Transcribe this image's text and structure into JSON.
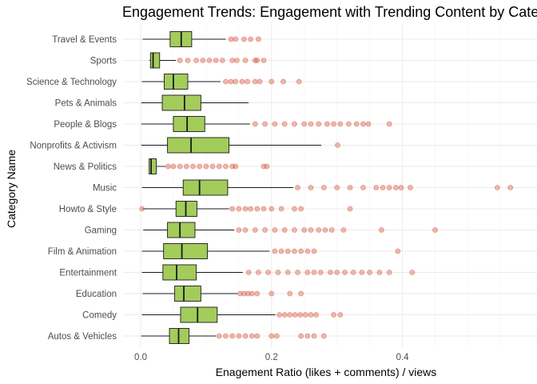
{
  "chart_data": {
    "type": "boxplot",
    "orientation": "horizontal",
    "title": "Engagement Trends: Engagement with Trending Content by Category",
    "xlabel": "Enagement Ratio (likes + comments) / views",
    "ylabel": "Category Name",
    "xlim": [
      -0.02,
      0.58
    ],
    "x_ticks": [
      0.0,
      0.2,
      0.4
    ],
    "x_tick_labels": [
      "0.0",
      "0.2",
      "0.4"
    ],
    "x_minor_ticks": [
      0.1,
      0.3,
      0.5
    ],
    "grid": true,
    "legend": "none",
    "box_color": "#a3cc5b",
    "outlier_color": "#d6543c",
    "categories": [
      {
        "name": "Travel & Events",
        "whisker_low": 0.003,
        "q1": 0.045,
        "median": 0.062,
        "q3": 0.078,
        "whisker_high": 0.13,
        "outliers": [
          0.138,
          0.145,
          0.158,
          0.168,
          0.18
        ]
      },
      {
        "name": "Sports",
        "whisker_low": 0.013,
        "q1": 0.015,
        "median": 0.019,
        "q3": 0.029,
        "whisker_high": 0.054,
        "outliers": [
          0.06,
          0.072,
          0.085,
          0.095,
          0.105,
          0.115,
          0.125,
          0.14,
          0.147,
          0.16,
          0.175,
          0.178,
          0.188
        ]
      },
      {
        "name": "Science & Technology",
        "whisker_low": 0.002,
        "q1": 0.036,
        "median": 0.05,
        "q3": 0.072,
        "whisker_high": 0.122,
        "outliers": [
          0.13,
          0.138,
          0.145,
          0.155,
          0.163,
          0.175,
          0.182,
          0.2,
          0.218,
          0.242
        ]
      },
      {
        "name": "Pets & Animals",
        "whisker_low": 0.001,
        "q1": 0.033,
        "median": 0.067,
        "q3": 0.092,
        "whisker_high": 0.165,
        "outliers": []
      },
      {
        "name": "People & Blogs",
        "whisker_low": 0.001,
        "q1": 0.05,
        "median": 0.071,
        "q3": 0.098,
        "whisker_high": 0.167,
        "outliers": [
          0.175,
          0.19,
          0.205,
          0.22,
          0.235,
          0.25,
          0.26,
          0.272,
          0.285,
          0.295,
          0.305,
          0.318,
          0.33,
          0.34,
          0.348,
          0.38
        ]
      },
      {
        "name": "Nonprofits & Activism",
        "whisker_low": 0.001,
        "q1": 0.041,
        "median": 0.077,
        "q3": 0.135,
        "whisker_high": 0.276,
        "outliers": [
          0.301
        ]
      },
      {
        "name": "News & Politics",
        "whisker_low": 0.013,
        "q1": 0.013,
        "median": 0.016,
        "q3": 0.024,
        "whisker_high": 0.038,
        "outliers": [
          0.042,
          0.05,
          0.06,
          0.07,
          0.08,
          0.09,
          0.1,
          0.11,
          0.12,
          0.13,
          0.14,
          0.145,
          0.188,
          0.193
        ]
      },
      {
        "name": "Music",
        "whisker_low": 0.002,
        "q1": 0.065,
        "median": 0.09,
        "q3": 0.133,
        "whisker_high": 0.233,
        "outliers": [
          0.24,
          0.26,
          0.28,
          0.3,
          0.32,
          0.34,
          0.36,
          0.37,
          0.38,
          0.39,
          0.398,
          0.412,
          0.545,
          0.565
        ]
      },
      {
        "name": "Howto & Style",
        "whisker_low": 0.003,
        "q1": 0.054,
        "median": 0.069,
        "q3": 0.086,
        "whisker_high": 0.135,
        "outliers": [
          0.002,
          0.14,
          0.15,
          0.16,
          0.168,
          0.178,
          0.188,
          0.2,
          0.215,
          0.235,
          0.245,
          0.32
        ]
      },
      {
        "name": "Gaming",
        "whisker_low": 0.004,
        "q1": 0.041,
        "median": 0.06,
        "q3": 0.083,
        "whisker_high": 0.143,
        "outliers": [
          0.15,
          0.16,
          0.175,
          0.19,
          0.205,
          0.22,
          0.235,
          0.25,
          0.26,
          0.272,
          0.282,
          0.292,
          0.31,
          0.368,
          0.45
        ]
      },
      {
        "name": "Film & Animation",
        "whisker_low": 0.002,
        "q1": 0.035,
        "median": 0.063,
        "q3": 0.102,
        "whisker_high": 0.197,
        "outliers": [
          0.205,
          0.215,
          0.225,
          0.235,
          0.245,
          0.255,
          0.265,
          0.393
        ]
      },
      {
        "name": "Entertainment",
        "whisker_low": 0.002,
        "q1": 0.034,
        "median": 0.055,
        "q3": 0.085,
        "whisker_high": 0.156,
        "outliers": [
          0.165,
          0.18,
          0.195,
          0.21,
          0.225,
          0.24,
          0.255,
          0.265,
          0.275,
          0.29,
          0.3,
          0.312,
          0.325,
          0.338,
          0.35,
          0.365,
          0.38,
          0.415
        ]
      },
      {
        "name": "Education",
        "whisker_low": 0.003,
        "q1": 0.052,
        "median": 0.066,
        "q3": 0.092,
        "whisker_high": 0.148,
        "outliers": [
          0.152,
          0.158,
          0.164,
          0.17,
          0.178,
          0.2,
          0.228,
          0.245
        ]
      },
      {
        "name": "Comedy",
        "whisker_low": 0.002,
        "q1": 0.061,
        "median": 0.087,
        "q3": 0.117,
        "whisker_high": 0.206,
        "outliers": [
          0.212,
          0.22,
          0.228,
          0.236,
          0.244,
          0.252,
          0.26,
          0.268,
          0.295,
          0.305
        ]
      },
      {
        "name": "Autos & Vehicles",
        "whisker_low": 0.001,
        "q1": 0.044,
        "median": 0.058,
        "q3": 0.074,
        "whisker_high": 0.115,
        "outliers": [
          0.12,
          0.13,
          0.14,
          0.15,
          0.16,
          0.17,
          0.178,
          0.2,
          0.208,
          0.245,
          0.255,
          0.265,
          0.28
        ]
      }
    ]
  }
}
